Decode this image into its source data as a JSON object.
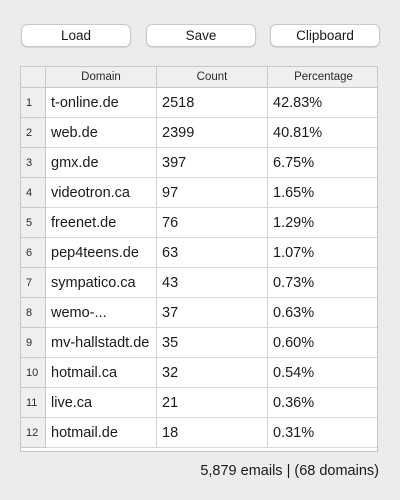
{
  "toolbar": {
    "load_label": "Load",
    "save_label": "Save",
    "clipboard_label": "Clipboard"
  },
  "table": {
    "columns": [
      "Domain",
      "Count",
      "Percentage"
    ],
    "rows": [
      {
        "index": "1",
        "domain": "t-online.de",
        "count": "2518",
        "percentage": "42.83%"
      },
      {
        "index": "2",
        "domain": "web.de",
        "count": "2399",
        "percentage": "40.81%"
      },
      {
        "index": "3",
        "domain": "gmx.de",
        "count": "397",
        "percentage": "6.75%"
      },
      {
        "index": "4",
        "domain": "videotron.ca",
        "count": "97",
        "percentage": "1.65%"
      },
      {
        "index": "5",
        "domain": "freenet.de",
        "count": "76",
        "percentage": "1.29%"
      },
      {
        "index": "6",
        "domain": "pep4teens.de",
        "count": "63",
        "percentage": "1.07%"
      },
      {
        "index": "7",
        "domain": "sympatico.ca",
        "count": "43",
        "percentage": "0.73%"
      },
      {
        "index": "8",
        "domain": "wemo-...",
        "count": "37",
        "percentage": "0.63%"
      },
      {
        "index": "9",
        "domain": "mv-hallstadt.de",
        "count": "35",
        "percentage": "0.60%"
      },
      {
        "index": "10",
        "domain": "hotmail.ca",
        "count": "32",
        "percentage": "0.54%"
      },
      {
        "index": "11",
        "domain": "live.ca",
        "count": "21",
        "percentage": "0.36%"
      },
      {
        "index": "12",
        "domain": "hotmail.de",
        "count": "18",
        "percentage": "0.31%"
      }
    ]
  },
  "status": {
    "summary": "5,879 emails | (68 domains)"
  }
}
